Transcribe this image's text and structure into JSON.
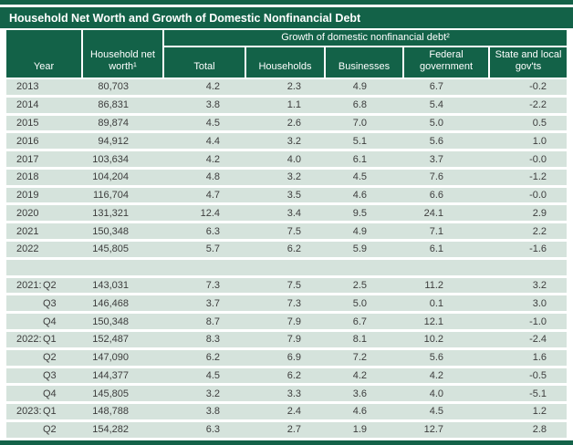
{
  "title": "Household Net Worth and Growth of Domestic Nonfinancial Debt",
  "colors": {
    "header_green": "#136248",
    "row_green": "#d5e3dc",
    "header_text": "#ffffff",
    "body_text": "#3d3d3d"
  },
  "table": {
    "group_header": "Growth of domestic nonfinancial debt²",
    "columns": [
      "Year",
      "Household net worth¹",
      "Total",
      "Households",
      "Businesses",
      "Federal government",
      "State and local gov'ts"
    ],
    "rows": [
      {
        "year": "2013",
        "quarter": "",
        "cells": [
          "80,703",
          "4.2",
          "2.3",
          "4.9",
          "6.7",
          "-0.2"
        ]
      },
      {
        "year": "2014",
        "quarter": "",
        "cells": [
          "86,831",
          "3.8",
          "1.1",
          "6.8",
          "5.4",
          "-2.2"
        ]
      },
      {
        "year": "2015",
        "quarter": "",
        "cells": [
          "89,874",
          "4.5",
          "2.6",
          "7.0",
          "5.0",
          "0.5"
        ]
      },
      {
        "year": "2016",
        "quarter": "",
        "cells": [
          "94,912",
          "4.4",
          "3.2",
          "5.1",
          "5.6",
          "1.0"
        ]
      },
      {
        "year": "2017",
        "quarter": "",
        "cells": [
          "103,634",
          "4.2",
          "4.0",
          "6.1",
          "3.7",
          "-0.0"
        ]
      },
      {
        "year": "2018",
        "quarter": "",
        "cells": [
          "104,204",
          "4.8",
          "3.2",
          "4.5",
          "7.6",
          "-1.2"
        ]
      },
      {
        "year": "2019",
        "quarter": "",
        "cells": [
          "116,704",
          "4.7",
          "3.5",
          "4.6",
          "6.6",
          "-0.0"
        ]
      },
      {
        "year": "2020",
        "quarter": "",
        "cells": [
          "131,321",
          "12.4",
          "3.4",
          "9.5",
          "24.1",
          "2.9"
        ]
      },
      {
        "year": "2021",
        "quarter": "",
        "cells": [
          "150,348",
          "6.3",
          "7.5",
          "4.9",
          "7.1",
          "2.2"
        ]
      },
      {
        "year": "2022",
        "quarter": "",
        "cells": [
          "145,805",
          "5.7",
          "6.2",
          "5.9",
          "6.1",
          "-1.6"
        ]
      },
      {
        "spacer": true,
        "year": "",
        "quarter": "",
        "cells": [
          "",
          "",
          "",
          "",
          "",
          ""
        ]
      },
      {
        "year": "2021:",
        "quarter": "Q2",
        "cells": [
          "143,031",
          "7.3",
          "7.5",
          "2.5",
          "11.2",
          "3.2"
        ]
      },
      {
        "year": "",
        "quarter": "Q3",
        "cells": [
          "146,468",
          "3.7",
          "7.3",
          "5.0",
          "0.1",
          "3.0"
        ]
      },
      {
        "year": "",
        "quarter": "Q4",
        "cells": [
          "150,348",
          "8.7",
          "7.9",
          "6.7",
          "12.1",
          "-1.0"
        ]
      },
      {
        "year": "2022:",
        "quarter": "Q1",
        "cells": [
          "152,487",
          "8.3",
          "7.9",
          "8.1",
          "10.2",
          "-2.4"
        ]
      },
      {
        "year": "",
        "quarter": "Q2",
        "cells": [
          "147,090",
          "6.2",
          "6.9",
          "7.2",
          "5.6",
          "1.6"
        ]
      },
      {
        "year": "",
        "quarter": "Q3",
        "cells": [
          "144,377",
          "4.5",
          "6.2",
          "4.2",
          "4.2",
          "-0.5"
        ]
      },
      {
        "year": "",
        "quarter": "Q4",
        "cells": [
          "145,805",
          "3.2",
          "3.3",
          "3.6",
          "4.0",
          "-5.1"
        ]
      },
      {
        "year": "2023:",
        "quarter": "Q1",
        "cells": [
          "148,788",
          "3.8",
          "2.4",
          "4.6",
          "4.5",
          "1.2"
        ]
      },
      {
        "year": "",
        "quarter": "Q2",
        "cells": [
          "154,282",
          "6.3",
          "2.7",
          "1.9",
          "12.7",
          "2.8"
        ]
      }
    ]
  }
}
